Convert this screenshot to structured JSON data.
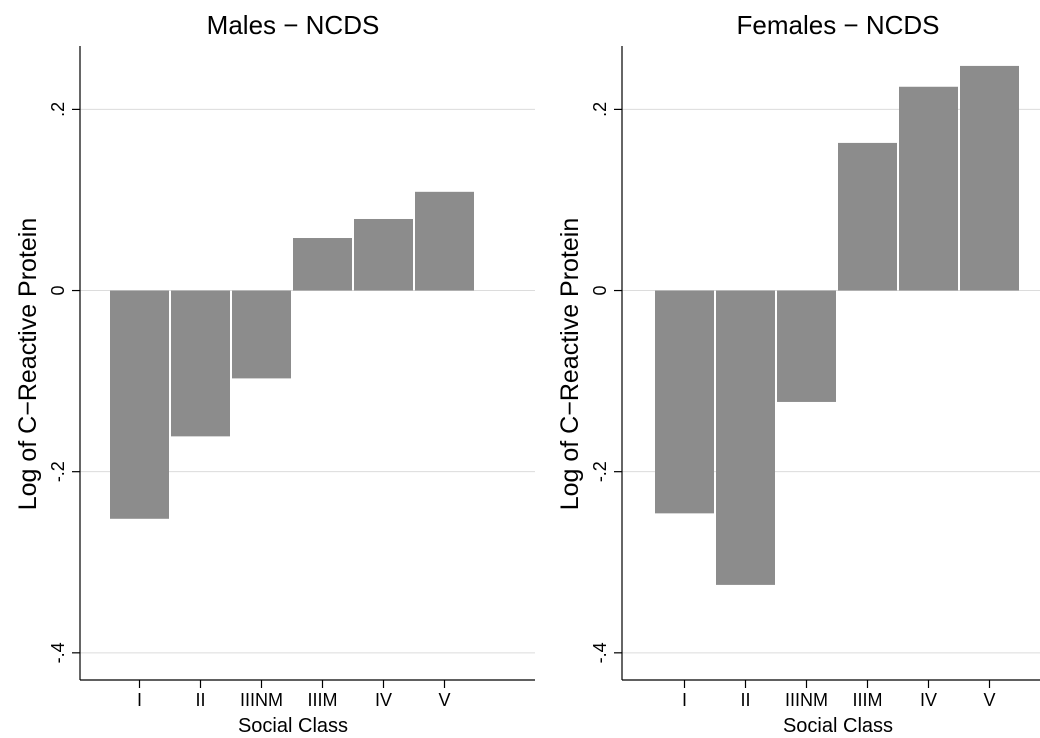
{
  "chart_data": [
    {
      "type": "bar",
      "title": "Males − NCDS",
      "xlabel": "Social Class",
      "ylabel": "Log of C−Reactive Protein",
      "categories": [
        "I",
        "II",
        "IIINM",
        "IIIM",
        "IV",
        "V"
      ],
      "values": [
        -0.252,
        -0.161,
        -0.097,
        0.058,
        0.079,
        0.109
      ],
      "ylim": [
        -0.43,
        0.27
      ],
      "yticks": [
        -0.4,
        -0.2,
        0,
        0.2
      ],
      "ytick_labels": [
        "-.4",
        "-.2",
        "0",
        ".2"
      ],
      "grid": true,
      "bar_color": "#8c8c8c"
    },
    {
      "type": "bar",
      "title": "Females − NCDS",
      "xlabel": "Social Class",
      "ylabel": "Log of C−Reactive Protein",
      "categories": [
        "I",
        "II",
        "IIINM",
        "IIIM",
        "IV",
        "V"
      ],
      "values": [
        -0.246,
        -0.325,
        -0.123,
        0.163,
        0.225,
        0.248
      ],
      "ylim": [
        -0.43,
        0.27
      ],
      "yticks": [
        -0.4,
        -0.2,
        0,
        0.2
      ],
      "ytick_labels": [
        "-.4",
        "-.2",
        "0",
        ".2"
      ],
      "grid": true,
      "bar_color": "#8c8c8c"
    }
  ]
}
